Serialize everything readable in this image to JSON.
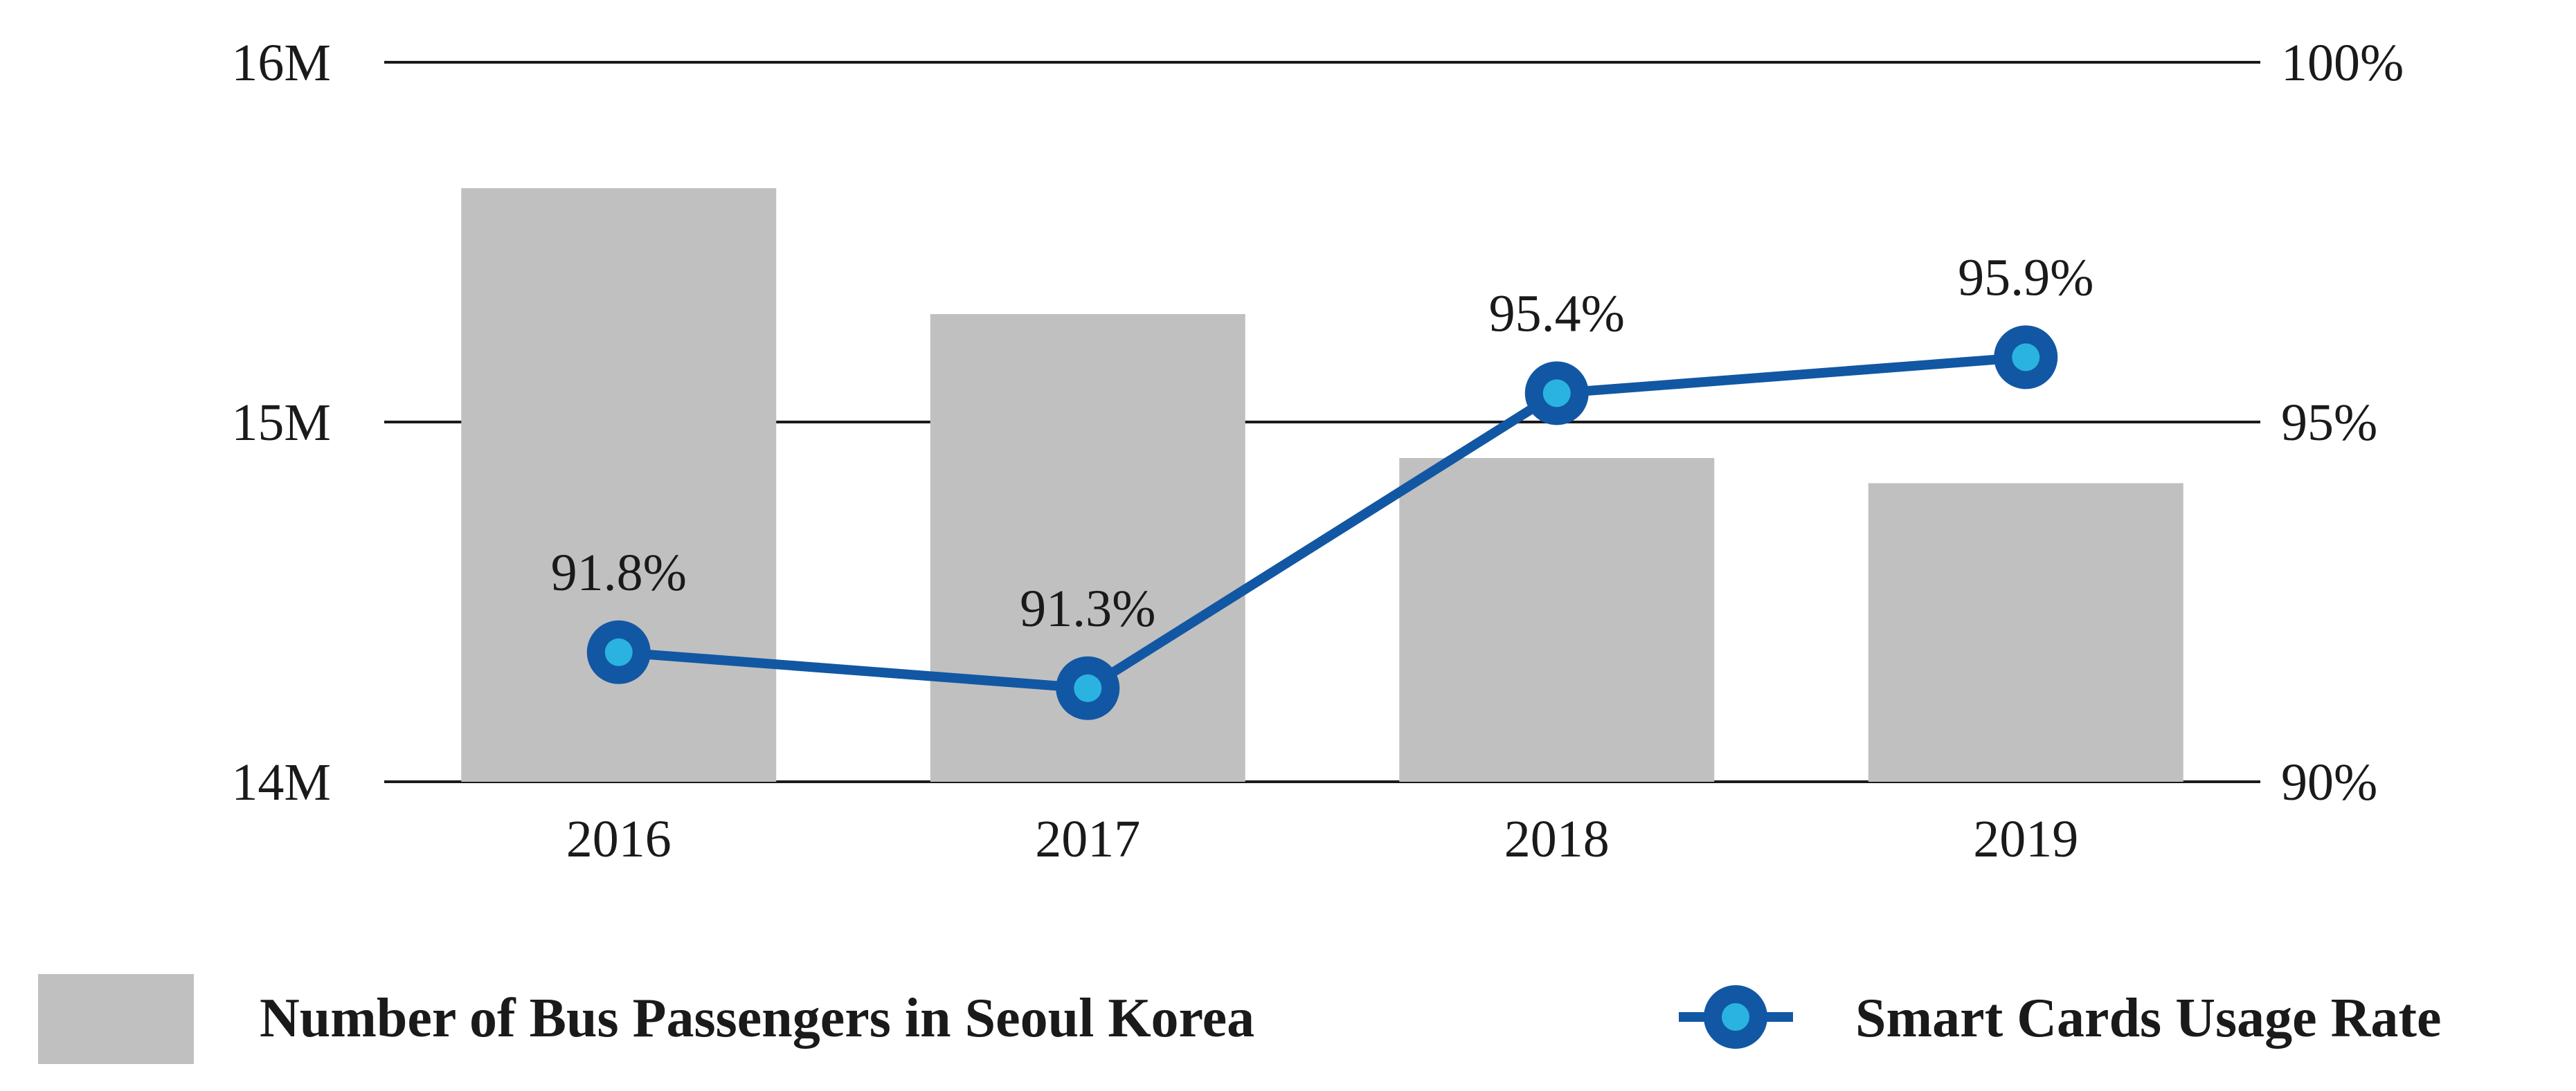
{
  "chart_data": {
    "type": "bar",
    "categories": [
      "2016",
      "2017",
      "2018",
      "2019"
    ],
    "series": [
      {
        "name": "Number of Bus Passengers in Seoul Korea",
        "type": "bar",
        "axis": "left",
        "values": [
          15.65,
          15.3,
          14.9,
          14.83
        ]
      },
      {
        "name": "Smart Cards Usage Rate",
        "type": "line",
        "axis": "right",
        "values": [
          91.8,
          91.3,
          95.4,
          95.9
        ],
        "labels": [
          "91.8%",
          "91.3%",
          "95.4%",
          "95.9%"
        ]
      }
    ],
    "left_axis": {
      "range": [
        14,
        16
      ],
      "ticks": [
        14,
        15,
        16
      ],
      "tick_labels": [
        "14M",
        "15M",
        "16M"
      ]
    },
    "right_axis": {
      "range": [
        90,
        100
      ],
      "ticks": [
        90,
        95,
        100
      ],
      "tick_labels": [
        "90%",
        "95%",
        "100%"
      ]
    },
    "title": "",
    "xlabel": "",
    "ylabel": "",
    "grid": true,
    "legend_position": "bottom"
  },
  "colors": {
    "bar": "#c0c0c0",
    "line": "#1257a3",
    "marker_center": "#2ab3e0",
    "grid": "#1a1a1a",
    "text": "#1a1a1a"
  }
}
